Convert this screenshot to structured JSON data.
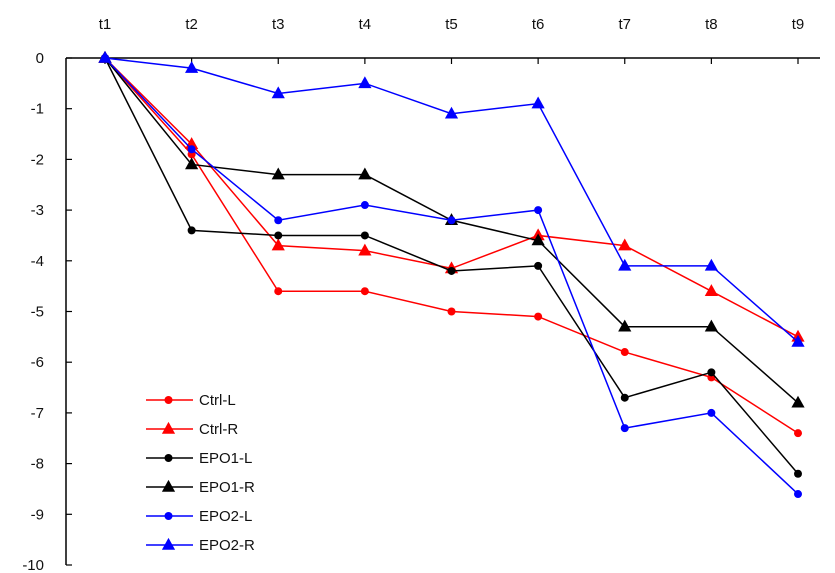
{
  "chart_data": {
    "type": "line",
    "title": "",
    "xlabel": "",
    "ylabel": "",
    "x": [
      "t1",
      "t2",
      "t3",
      "t4",
      "t5",
      "t6",
      "t7",
      "t8",
      "t9"
    ],
    "ylim": [
      -10,
      0
    ],
    "yticks": [
      "0",
      "-1",
      "-2",
      "-3",
      "-4",
      "-5",
      "-6",
      "-7",
      "-8",
      "-9",
      "-10"
    ],
    "x_axis_position": "top",
    "grid": false,
    "legend_position": "bottom-left",
    "series": [
      {
        "name": "Ctrl-L",
        "color": "#ff0000",
        "marker": "circle",
        "values": [
          0,
          -1.9,
          -4.6,
          -4.6,
          -5.0,
          -5.1,
          -5.8,
          -6.3,
          -7.4
        ]
      },
      {
        "name": "Ctrl-R",
        "color": "#ff0000",
        "marker": "triangle",
        "values": [
          0,
          -1.7,
          -3.7,
          -3.8,
          -4.15,
          -3.5,
          -3.7,
          -4.6,
          -5.5
        ]
      },
      {
        "name": "EPO1-L",
        "color": "#000000",
        "marker": "circle",
        "values": [
          0,
          -3.4,
          -3.5,
          -3.5,
          -4.2,
          -4.1,
          -6.7,
          -6.2,
          -8.2
        ]
      },
      {
        "name": "EPO1-R",
        "color": "#000000",
        "marker": "triangle",
        "values": [
          0,
          -2.1,
          -2.3,
          -2.3,
          -3.2,
          -3.6,
          -5.3,
          -5.3,
          -6.8
        ]
      },
      {
        "name": "EPO2-L",
        "color": "#0000ff",
        "marker": "circle",
        "values": [
          0,
          -1.8,
          -3.2,
          -2.9,
          -3.2,
          -3.0,
          -7.3,
          -7.0,
          -8.6
        ]
      },
      {
        "name": "EPO2-R",
        "color": "#0000ff",
        "marker": "triangle",
        "values": [
          0,
          -0.2,
          -0.7,
          -0.5,
          -1.1,
          -0.9,
          -4.1,
          -4.1,
          -5.6
        ]
      }
    ]
  }
}
